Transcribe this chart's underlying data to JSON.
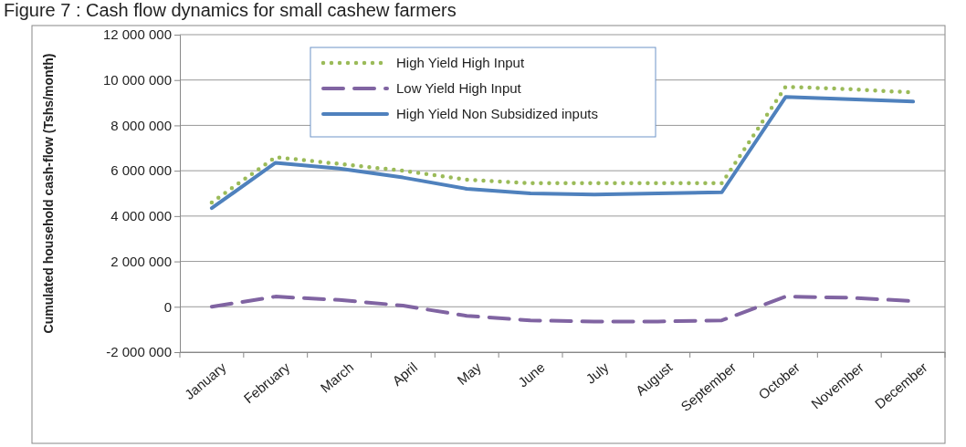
{
  "chart_data": {
    "type": "line",
    "title": "Figure 7 : Cash flow dynamics for small cashew farmers",
    "ylabel": "Cumulated household cash-flow (Tshs/month)",
    "categories": [
      "January",
      "February",
      "March",
      "April",
      "May",
      "June",
      "July",
      "August",
      "September",
      "October",
      "November",
      "December"
    ],
    "series": [
      {
        "name": "High Yield High Input",
        "color": "#9bbb59",
        "line_style": "dotted",
        "values": [
          4600000,
          6600000,
          6300000,
          6000000,
          5600000,
          5450000,
          5450000,
          5450000,
          5450000,
          9700000,
          9600000,
          9450000
        ]
      },
      {
        "name": "Low Yield High Input",
        "color": "#8064a2",
        "line_style": "dashed",
        "values": [
          0,
          450000,
          300000,
          50000,
          -400000,
          -600000,
          -650000,
          -650000,
          -600000,
          450000,
          400000,
          250000
        ]
      },
      {
        "name": "High Yield Non Subsidized inputs",
        "color": "#4f81bd",
        "line_style": "solid",
        "values": [
          4350000,
          6350000,
          6100000,
          5700000,
          5200000,
          5000000,
          4950000,
          5000000,
          5050000,
          9250000,
          9150000,
          9050000
        ]
      }
    ],
    "ylim": [
      -2000000,
      12000000
    ],
    "yticks": [
      {
        "value": -2000000,
        "label": "-2 000 000"
      },
      0,
      {
        "value": 2000000,
        "label": "2 000 000"
      },
      {
        "value": 4000000,
        "label": "4 000 000"
      },
      {
        "value": 6000000,
        "label": "6 000 000"
      },
      {
        "value": 8000000,
        "label": "8 000 000"
      },
      {
        "value": 10000000,
        "label": "10 000 000"
      },
      {
        "value": 12000000,
        "label": "12 000 000"
      }
    ],
    "grid": "y",
    "legend": "top"
  }
}
